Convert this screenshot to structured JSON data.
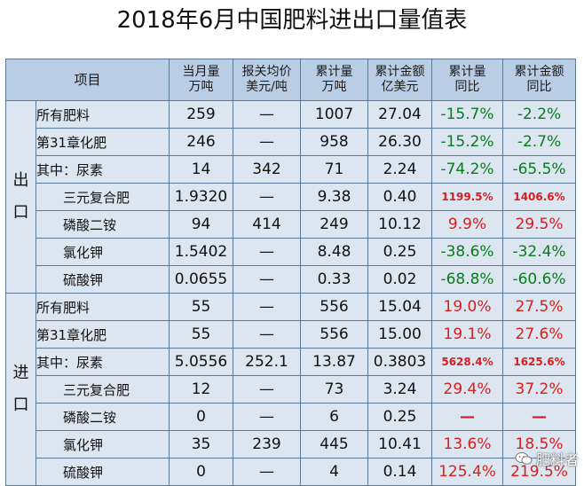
{
  "title": "2018年6月中国肥料进出口量值表",
  "headers": {
    "item": "项目",
    "month_qty": [
      "当月量",
      "万吨"
    ],
    "price": [
      "报关均价",
      "美元/吨"
    ],
    "cum_qty": [
      "累计量",
      "万吨"
    ],
    "cum_val": [
      "累计金额",
      "亿美元"
    ],
    "qty_yoy": [
      "累计量",
      "同比"
    ],
    "val_yoy": [
      "累计金额",
      "同比"
    ]
  },
  "export": {
    "label": [
      "出",
      "口"
    ],
    "rows": [
      {
        "item": "所有肥料",
        "month_qty": "259",
        "price": "—",
        "cum_qty": "1007",
        "cum_val": "27.04",
        "qty_yoy": "-15.7%",
        "val_yoy": "-2.2%"
      },
      {
        "item": "第31章化肥",
        "month_qty": "246",
        "price": "—",
        "cum_qty": "958",
        "cum_val": "26.30",
        "qty_yoy": "-15.2%",
        "val_yoy": "-2.7%"
      },
      {
        "item": "其中：尿素",
        "month_qty": "14",
        "price": "342",
        "cum_qty": "71",
        "cum_val": "2.24",
        "qty_yoy": "-74.2%",
        "val_yoy": "-65.5%"
      },
      {
        "item": "三元复合肥",
        "month_qty": "1.9320",
        "price": "—",
        "cum_qty": "9.38",
        "cum_val": "0.40",
        "qty_yoy": "1199.5%",
        "val_yoy": "1406.6%"
      },
      {
        "item": "磷酸二铵",
        "month_qty": "94",
        "price": "414",
        "cum_qty": "249",
        "cum_val": "10.12",
        "qty_yoy": "9.9%",
        "val_yoy": "29.5%"
      },
      {
        "item": "氯化钾",
        "month_qty": "1.5402",
        "price": "—",
        "cum_qty": "8.48",
        "cum_val": "0.25",
        "qty_yoy": "-38.6%",
        "val_yoy": "-32.4%"
      },
      {
        "item": "硫酸钾",
        "month_qty": "0.0655",
        "price": "—",
        "cum_qty": "0.33",
        "cum_val": "0.02",
        "qty_yoy": "-68.8%",
        "val_yoy": "-60.6%"
      }
    ]
  },
  "import": {
    "label": [
      "进",
      "口"
    ],
    "rows": [
      {
        "item": "所有肥料",
        "month_qty": "55",
        "price": "—",
        "cum_qty": "556",
        "cum_val": "15.04",
        "qty_yoy": "19.0%",
        "val_yoy": "27.5%"
      },
      {
        "item": "第31章化肥",
        "month_qty": "55",
        "price": "—",
        "cum_qty": "556",
        "cum_val": "15.00",
        "qty_yoy": "19.1%",
        "val_yoy": "27.6%"
      },
      {
        "item": "其中：尿素",
        "month_qty": "5.0556",
        "price": "252.1",
        "cum_qty": "13.87",
        "cum_val": "0.3803",
        "qty_yoy": "5628.4%",
        "val_yoy": "1625.6%"
      },
      {
        "item": "三元复合肥",
        "month_qty": "12",
        "price": "—",
        "cum_qty": "73",
        "cum_val": "3.24",
        "qty_yoy": "29.4%",
        "val_yoy": "37.2%"
      },
      {
        "item": "磷酸二铵",
        "month_qty": "0",
        "price": "—",
        "cum_qty": "6",
        "cum_val": "0.25",
        "qty_yoy": "—",
        "val_yoy": "—"
      },
      {
        "item": "氯化钾",
        "month_qty": "35",
        "price": "239",
        "cum_qty": "445",
        "cum_val": "10.41",
        "qty_yoy": "13.6%",
        "val_yoy": "18.5%"
      },
      {
        "item": "硫酸钾",
        "month_qty": "0",
        "price": "—",
        "cum_qty": "4",
        "cum_val": "0.14",
        "qty_yoy": "125.4%",
        "val_yoy": "219.5%"
      }
    ]
  },
  "colors": {
    "header_bg": "#b9cde5",
    "cell_bg": "#dce6f1",
    "negative": "#0a7a1e",
    "positive": "#d81e1e"
  },
  "watermark": {
    "icon": "wechat-icon",
    "text": "肥料者"
  }
}
